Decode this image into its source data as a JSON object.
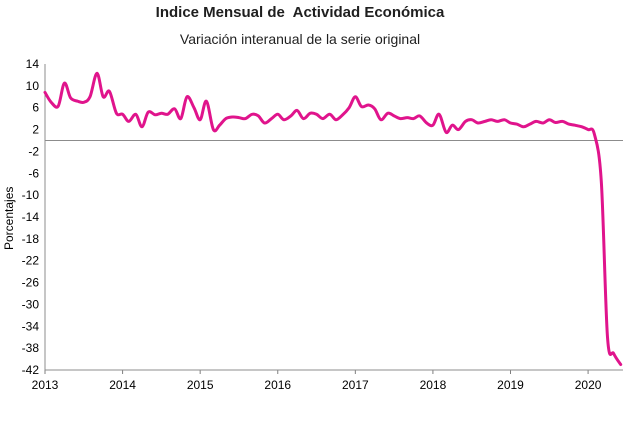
{
  "chart_data": {
    "type": "line",
    "title": "Indice Mensual de  Actividad Económica",
    "subtitle": "Variación interanual de la serie original",
    "xlabel": "",
    "ylabel": "Porcentajes",
    "ylim": [
      -42,
      14
    ],
    "yticks": [
      14,
      10,
      6,
      2,
      -2,
      -6,
      -10,
      -14,
      -18,
      -22,
      -26,
      -30,
      -34,
      -38,
      -42
    ],
    "xlim": [
      2013,
      2020.45
    ],
    "xticks": [
      "2013",
      "2014",
      "2015",
      "2016",
      "2017",
      "2018",
      "2019",
      "2020"
    ],
    "grid": false,
    "zero_line": true,
    "series": [
      {
        "color": "#e0148c",
        "x": [
          2013.0,
          2013.08,
          2013.17,
          2013.25,
          2013.33,
          2013.42,
          2013.5,
          2013.58,
          2013.67,
          2013.75,
          2013.83,
          2013.92,
          2014.0,
          2014.08,
          2014.17,
          2014.25,
          2014.33,
          2014.42,
          2014.5,
          2014.58,
          2014.67,
          2014.75,
          2014.83,
          2014.92,
          2015.0,
          2015.08,
          2015.17,
          2015.25,
          2015.33,
          2015.42,
          2015.5,
          2015.58,
          2015.67,
          2015.75,
          2015.83,
          2015.92,
          2016.0,
          2016.08,
          2016.17,
          2016.25,
          2016.33,
          2016.42,
          2016.5,
          2016.58,
          2016.67,
          2016.75,
          2016.83,
          2016.92,
          2017.0,
          2017.08,
          2017.17,
          2017.25,
          2017.33,
          2017.42,
          2017.5,
          2017.58,
          2017.67,
          2017.75,
          2017.83,
          2017.92,
          2018.0,
          2018.08,
          2018.17,
          2018.25,
          2018.33,
          2018.42,
          2018.5,
          2018.58,
          2018.67,
          2018.75,
          2018.83,
          2018.92,
          2019.0,
          2019.08,
          2019.17,
          2019.25,
          2019.33,
          2019.42,
          2019.5,
          2019.58,
          2019.67,
          2019.75,
          2019.83,
          2019.92,
          2020.0,
          2020.08,
          2020.17,
          2020.25,
          2020.33,
          2020.42
        ],
        "values": [
          8.8,
          7.0,
          6.3,
          10.5,
          7.8,
          7.2,
          7.0,
          8.0,
          12.3,
          8.0,
          9.0,
          5.0,
          4.8,
          3.5,
          4.8,
          2.5,
          5.2,
          4.7,
          5.0,
          4.8,
          5.8,
          4.0,
          8.0,
          6.0,
          3.8,
          7.2,
          2.0,
          2.8,
          4.0,
          4.3,
          4.2,
          4.0,
          4.8,
          4.5,
          3.2,
          4.0,
          4.8,
          3.8,
          4.5,
          5.5,
          4.0,
          5.0,
          4.8,
          4.0,
          4.8,
          3.8,
          4.6,
          6.0,
          8.0,
          6.2,
          6.5,
          5.8,
          3.8,
          5.0,
          4.5,
          4.0,
          4.2,
          4.0,
          4.5,
          3.2,
          2.8,
          4.8,
          1.5,
          2.8,
          2.0,
          3.5,
          3.8,
          3.2,
          3.5,
          3.8,
          3.5,
          3.8,
          3.2,
          3.0,
          2.5,
          3.0,
          3.5,
          3.2,
          3.8,
          3.3,
          3.5,
          3.0,
          2.8,
          2.5,
          2.0,
          1.2,
          -7.5,
          -36.0,
          -39.0,
          -41.0
        ]
      }
    ]
  }
}
